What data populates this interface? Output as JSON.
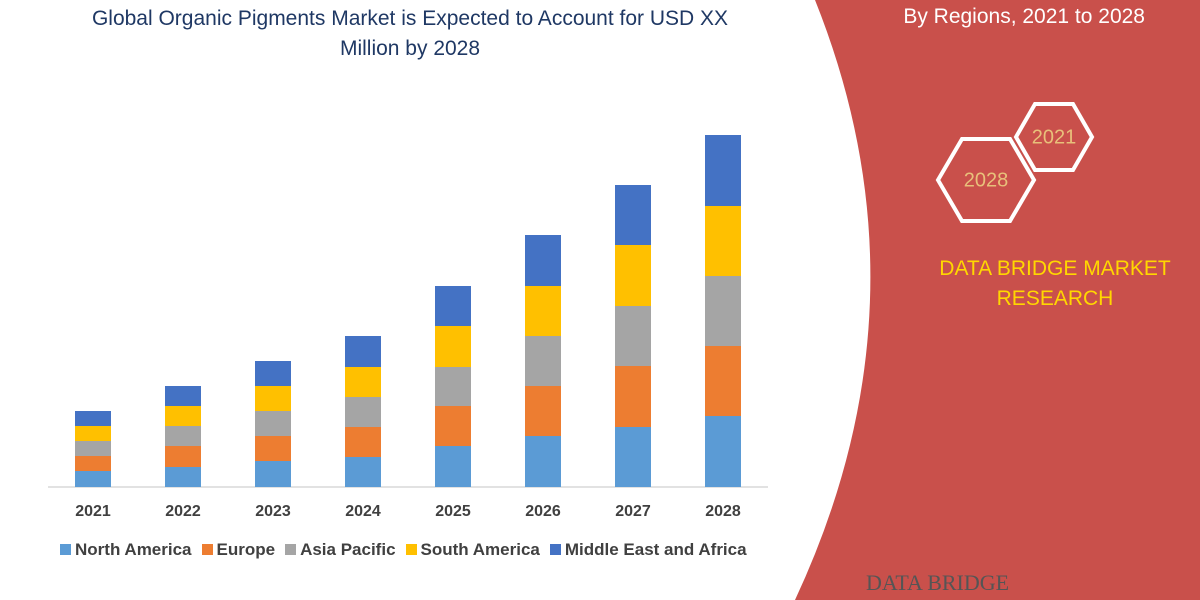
{
  "chart_data": {
    "type": "stacked_bar",
    "title": "Global Organic Pigments Market is Expected to Account for USD XX Million by 2028",
    "categories": [
      "2021",
      "2022",
      "2023",
      "2024",
      "2025",
      "2026",
      "2027",
      "2028"
    ],
    "series": [
      {
        "name": "North America",
        "color": "#5b9bd5",
        "values": [
          16,
          20,
          26,
          30,
          41,
          51,
          60,
          71
        ]
      },
      {
        "name": "Europe",
        "color": "#ed7d31",
        "values": [
          15,
          21,
          25,
          30,
          40,
          50,
          61,
          70
        ]
      },
      {
        "name": "Asia Pacific",
        "color": "#a5a5a5",
        "values": [
          15,
          20,
          25,
          30,
          39,
          50,
          60,
          70
        ]
      },
      {
        "name": "South America",
        "color": "#ffc000",
        "values": [
          15,
          20,
          25,
          30,
          41,
          50,
          61,
          70
        ]
      },
      {
        "name": "Middle East and Africa",
        "color": "#4472c4",
        "values": [
          15,
          20,
          25,
          31,
          40,
          51,
          60,
          71
        ]
      }
    ],
    "ylim": [
      0,
      360
    ]
  },
  "panel": {
    "subtitle": "By Regions, 2021 to 2028",
    "badges": [
      "2021",
      "2028"
    ],
    "brand": "DATA BRIDGE MARKET RESEARCH",
    "logo": "DATA BRIDGE"
  }
}
